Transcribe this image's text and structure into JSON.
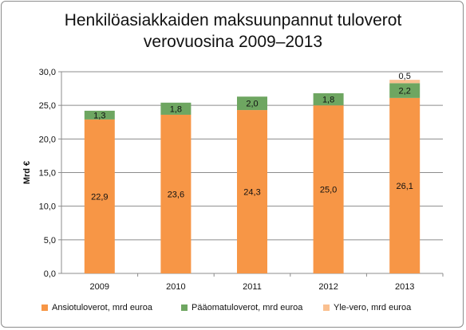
{
  "chart_data": {
    "type": "bar",
    "stacked": true,
    "title_lines": [
      "Henkilöasiakkaiden maksuunpannut tuloverot",
      "verovuosina 2009–2013"
    ],
    "xlabel": "",
    "ylabel": "Mrd €",
    "ylim": [
      0,
      30
    ],
    "yticks": [
      "0,0",
      "5,0",
      "10,0",
      "15,0",
      "20,0",
      "25,0",
      "30,0"
    ],
    "grid": true,
    "legend_position": "bottom",
    "categories": [
      "2009",
      "2010",
      "2011",
      "2012",
      "2013"
    ],
    "series": [
      {
        "name": "Ansiotuloverot, mrd euroa",
        "color": "#f79646",
        "values": [
          22.9,
          23.6,
          24.3,
          25.0,
          26.1
        ],
        "labels": [
          "22,9",
          "23,6",
          "24,3",
          "25,0",
          "26,1"
        ]
      },
      {
        "name": "Pääomatuloverot, mrd euroa",
        "color": "#6ea661",
        "values": [
          1.3,
          1.8,
          2.0,
          1.8,
          2.2
        ],
        "labels": [
          "1,3",
          "1,8",
          "2,0",
          "1,8",
          "2,2"
        ]
      },
      {
        "name": "Yle-vero, mrd euroa",
        "color": "#fac090",
        "values": [
          0,
          0,
          0,
          0,
          0.5
        ],
        "labels": [
          "",
          "",
          "",
          "",
          "0,5"
        ]
      }
    ]
  }
}
